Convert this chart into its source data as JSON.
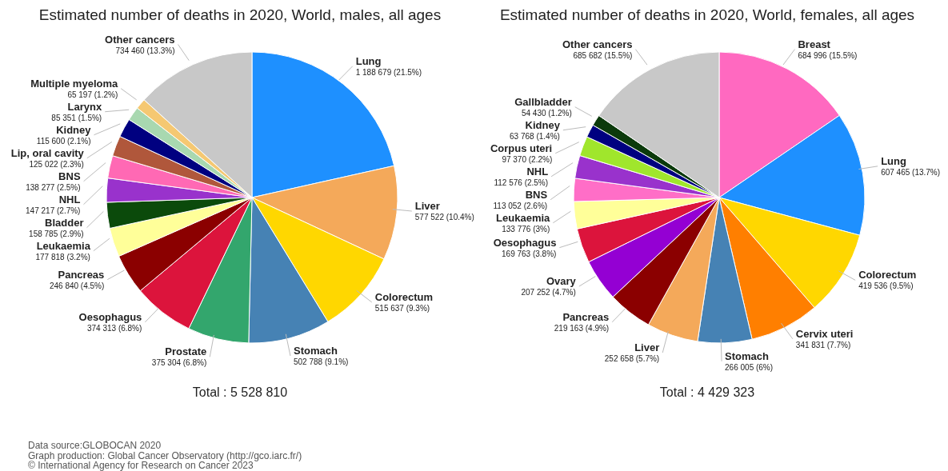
{
  "chart_data": [
    {
      "type": "pie",
      "title": "Estimated number of deaths in 2020, World, males, all ages",
      "categories": [
        "Lung",
        "Liver",
        "Colorectum",
        "Stomach",
        "Prostate",
        "Oesophagus",
        "Pancreas",
        "Leukaemia",
        "Bladder",
        "NHL",
        "BNS",
        "Lip, oral cavity",
        "Kidney",
        "Larynx",
        "Multiple myeloma",
        "Other cancers"
      ],
      "values": [
        1188679,
        577522,
        515637,
        502788,
        375304,
        374313,
        246840,
        177818,
        158785,
        147217,
        138277,
        125022,
        115600,
        85351,
        65197,
        734460
      ],
      "colors": [
        "#1e90ff",
        "#f4a95a",
        "#ffd700",
        "#4682b4",
        "#33a66d",
        "#dc143c",
        "#8b0000",
        "#ffff99",
        "#0b4a0b",
        "#9932cc",
        "#ff69b4",
        "#b0573b",
        "#000080",
        "#a8d8b0",
        "#f5c872",
        "#c8c8c8"
      ],
      "value_labels": [
        "1 188 679 (21.5%)",
        "577 522 (10.4%)",
        "515 637 (9.3%)",
        "502 788 (9.1%)",
        "375 304 (6.8%)",
        "374 313 (6.8%)",
        "246 840 (4.5%)",
        "177 818 (3.2%)",
        "158 785 (2.9%)",
        "147 217 (2.7%)",
        "138 277 (2.5%)",
        "125 022 (2.3%)",
        "115 600 (2.1%)",
        "85 351 (1.5%)",
        "65 197 (1.2%)",
        "734 460 (13.3%)"
      ],
      "annotations": [
        "Total : 5 528 810",
        "Data source:GLOBOCAN 2020",
        "Graph production: Global Cancer Observatory (http://gco.iarc.fr/)",
        "© International Agency for Research on Cancer 2023"
      ]
    },
    {
      "type": "pie",
      "title": "Estimated number of deaths in 2020, World, females, all ages",
      "categories": [
        "Breast",
        "Lung",
        "Colorectum",
        "Cervix uteri",
        "Stomach",
        "Liver",
        "Pancreas",
        "Ovary",
        "Oesophagus",
        "Leukaemia",
        "BNS",
        "NHL",
        "Corpus uteri",
        "Kidney",
        "Gallbladder",
        "Other cancers"
      ],
      "values": [
        684996,
        607465,
        419536,
        341831,
        266005,
        252658,
        219163,
        207252,
        169763,
        133776,
        113052,
        112576,
        97370,
        63768,
        54430,
        685682
      ],
      "colors": [
        "#ff69c0",
        "#1e90ff",
        "#ffd700",
        "#ff7f00",
        "#4682b4",
        "#f4a95a",
        "#8b0000",
        "#9400d3",
        "#dc143c",
        "#ffff99",
        "#ff6ec7",
        "#9932cc",
        "#a0e62c",
        "#000080",
        "#0b3a0b",
        "#c8c8c8"
      ],
      "value_labels": [
        "684 996 (15.5%)",
        "607 465 (13.7%)",
        "419 536 (9.5%)",
        "341 831 (7.7%)",
        "266 005 (6%)",
        "252 658 (5.7%)",
        "219 163 (4.9%)",
        "207 252 (4.7%)",
        "169 763 (3.8%)",
        "133 776 (3%)",
        "113 052 (2.6%)",
        "112 576 (2.5%)",
        "97 370 (2.2%)",
        "63 768 (1.4%)",
        "54 430 (1.2%)",
        "685 682 (15.5%)"
      ],
      "annotations": [
        "Total : 4 429 323"
      ]
    }
  ]
}
